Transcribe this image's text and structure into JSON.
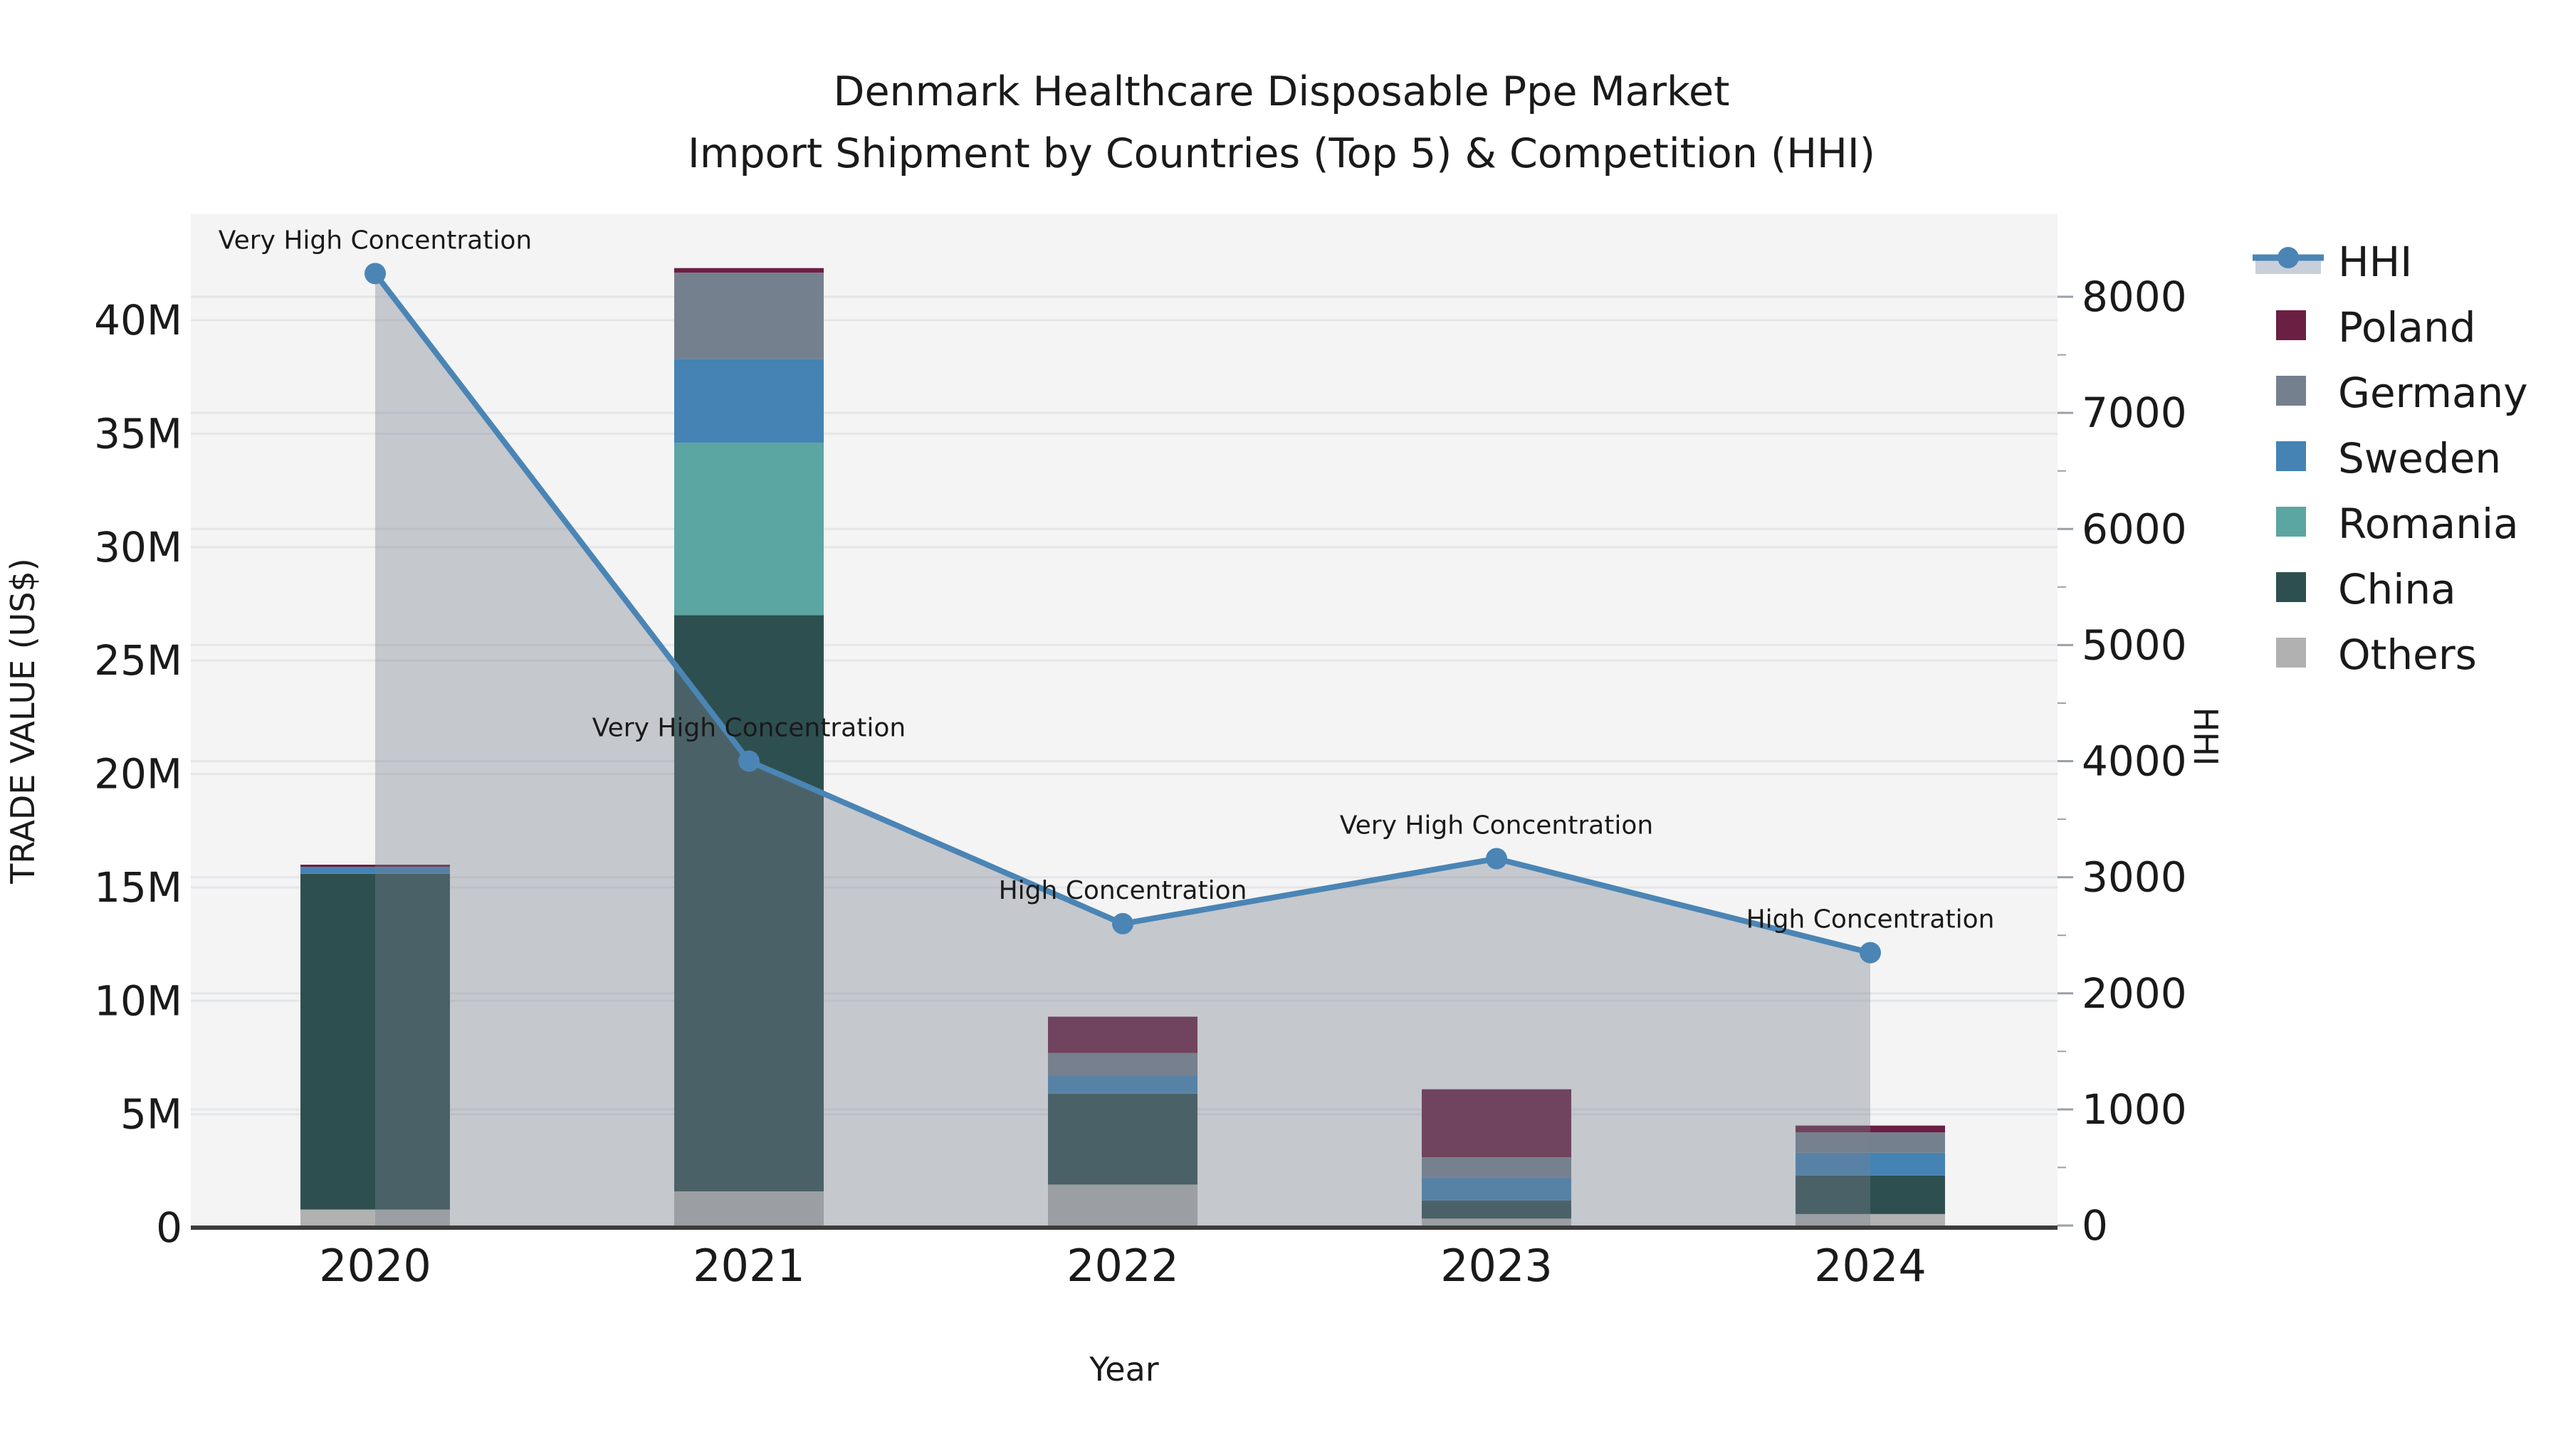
{
  "title": {
    "line1": "Denmark Healthcare Disposable Ppe Market",
    "line2": "Import Shipment by Countries (Top 5) & Competition (HHI)"
  },
  "axes": {
    "x_label": "Year",
    "left_label": "TRADE VALUE (US$)",
    "right_label": "HHI",
    "left_ticks": [
      "0",
      "5M",
      "10M",
      "15M",
      "20M",
      "25M",
      "30M",
      "35M",
      "40M"
    ],
    "right_ticks": [
      "0",
      "1000",
      "2000",
      "3000",
      "4000",
      "5000",
      "6000",
      "7000",
      "8000"
    ]
  },
  "legend": {
    "items": [
      {
        "label": "HHI",
        "type": "line",
        "color": "#4a85b5",
        "band_color": "#c9cfda"
      },
      {
        "label": "Poland",
        "type": "swatch",
        "color": "#6b1f42"
      },
      {
        "label": "Germany",
        "type": "swatch",
        "color": "#75808f"
      },
      {
        "label": "Sweden",
        "type": "swatch",
        "color": "#4483b4"
      },
      {
        "label": "Romania",
        "type": "swatch",
        "color": "#5ba5a2"
      },
      {
        "label": "China",
        "type": "swatch",
        "color": "#2e4f4f"
      },
      {
        "label": "Others",
        "type": "swatch",
        "color": "#b1b1b1"
      }
    ]
  },
  "chart_data": {
    "type": "combo_stacked_bar_line",
    "categories": [
      "2020",
      "2021",
      "2022",
      "2023",
      "2024"
    ],
    "xlabel": "Year",
    "bar_unit": "USD millions",
    "stack_order_bottom_to_top": [
      "Others",
      "China",
      "Romania",
      "Sweden",
      "Germany",
      "Poland"
    ],
    "series": [
      {
        "name": "Others",
        "color": "#b1b1b1",
        "values": [
          0.8,
          1.6,
          1.9,
          0.4,
          0.6
        ]
      },
      {
        "name": "China",
        "color": "#2e4f4f",
        "values": [
          14.8,
          25.4,
          4.0,
          0.8,
          1.7
        ]
      },
      {
        "name": "Romania",
        "color": "#5ba5a2",
        "values": [
          0.0,
          7.6,
          0.0,
          0.0,
          0.0
        ]
      },
      {
        "name": "Sweden",
        "color": "#4483b4",
        "values": [
          0.3,
          3.7,
          0.8,
          1.0,
          1.0
        ]
      },
      {
        "name": "Germany",
        "color": "#75808f",
        "values": [
          0.0,
          3.8,
          1.0,
          0.9,
          0.9
        ]
      },
      {
        "name": "Poland",
        "color": "#6b1f42",
        "values": [
          0.1,
          0.2,
          1.6,
          3.0,
          0.3
        ]
      }
    ],
    "bar_totals_musd": [
      16.0,
      42.3,
      9.3,
      6.1,
      4.5
    ],
    "line_series": {
      "name": "HHI",
      "color": "#4a85b5",
      "area_fill": "rgba(120,128,142,0.38)",
      "values": [
        8200,
        4000,
        2600,
        3160,
        2350
      ],
      "annotations": [
        "Very High Concentration",
        "Very High Concentration",
        "High Concentration",
        "Very High Concentration",
        "High Concentration"
      ]
    },
    "left_axis": {
      "label": "TRADE VALUE (US$)",
      "min": 0,
      "tick_step_musd": 5,
      "tick_values_musd": [
        0,
        5,
        10,
        15,
        20,
        25,
        30,
        35,
        40
      ]
    },
    "right_axis": {
      "label": "HHI",
      "min": 0,
      "tick_step": 1000,
      "tick_values": [
        0,
        1000,
        2000,
        3000,
        4000,
        5000,
        6000,
        7000,
        8000
      ]
    },
    "grid": true,
    "legend_position": "right"
  },
  "colors": {
    "plot_bg": "#f4f4f4",
    "grid": "#e4e6ea",
    "axis_line": "#3c3c3c",
    "text": "#1a1a1a"
  }
}
